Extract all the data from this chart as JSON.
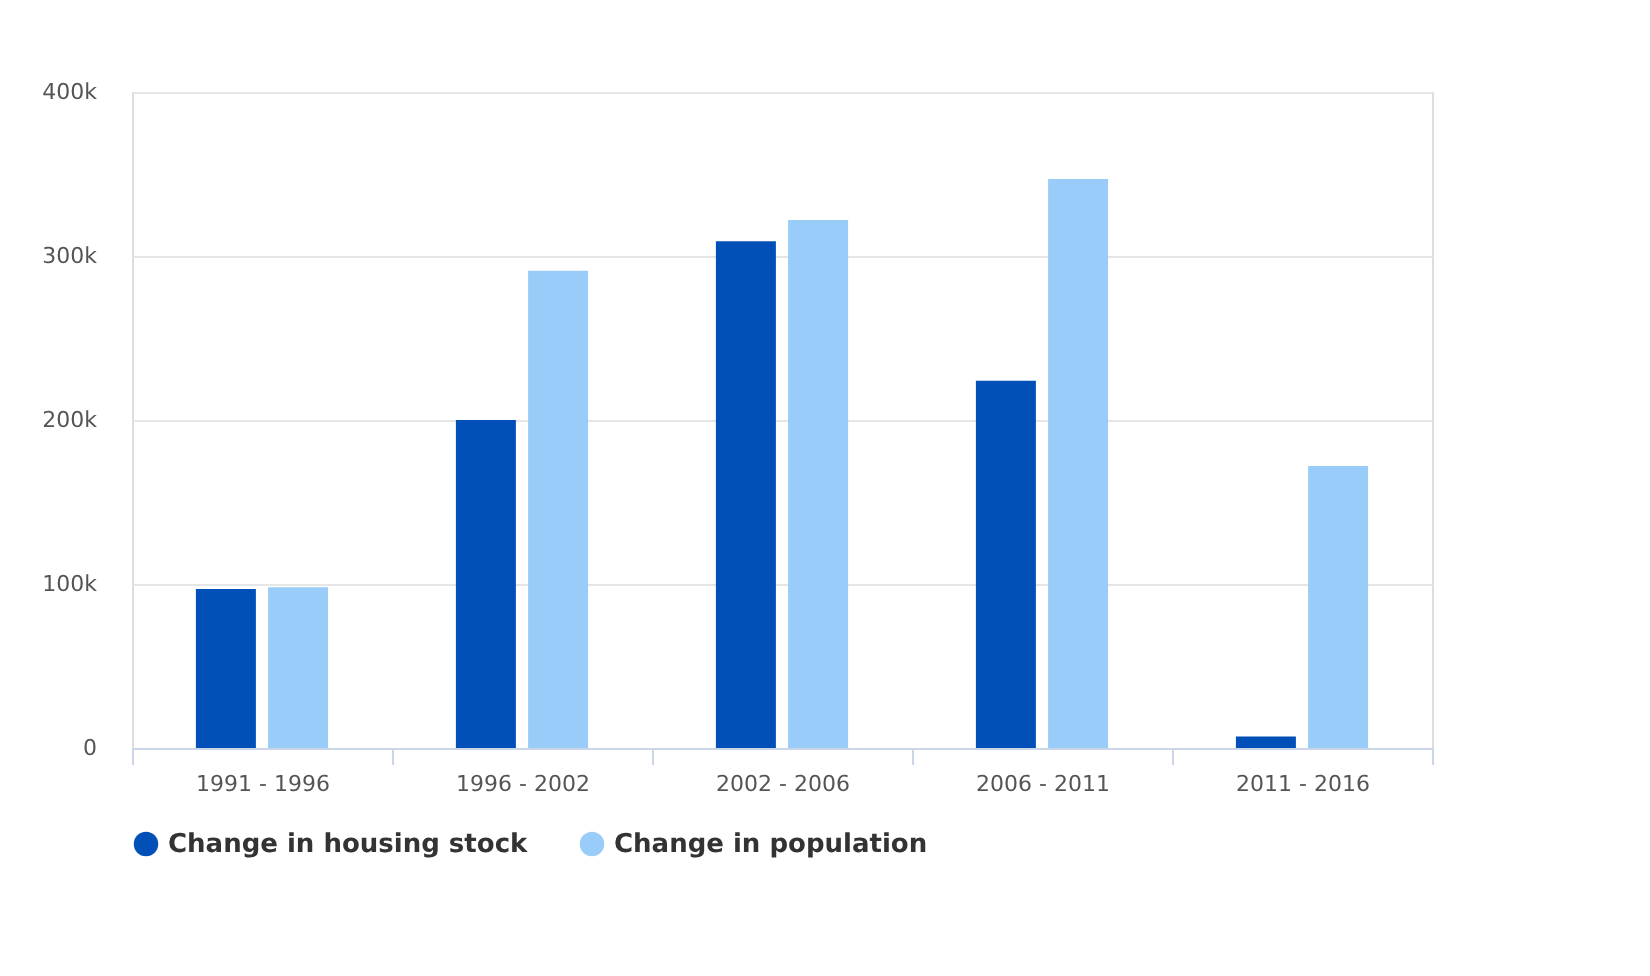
{
  "chart_data": {
    "type": "bar",
    "categories": [
      "1991 - 1996",
      "1996 - 2002",
      "2002 - 2006",
      "2006 - 2011",
      "2011 - 2016"
    ],
    "series": [
      {
        "name": "Change in housing stock",
        "color": "#0050b8",
        "values": [
          97000,
          200000,
          309000,
          224000,
          7000
        ]
      },
      {
        "name": "Change in population",
        "color": "#99ccf8",
        "values": [
          98000,
          291000,
          322000,
          347000,
          172000
        ]
      }
    ],
    "ylim": [
      0,
      400000
    ],
    "yticks": [
      {
        "value": 0,
        "label": "0"
      },
      {
        "value": 100000,
        "label": "100k"
      },
      {
        "value": 200000,
        "label": "200k"
      },
      {
        "value": 300000,
        "label": "300k"
      },
      {
        "value": 400000,
        "label": "400k"
      }
    ],
    "grid": "y",
    "legend": "bottom"
  }
}
